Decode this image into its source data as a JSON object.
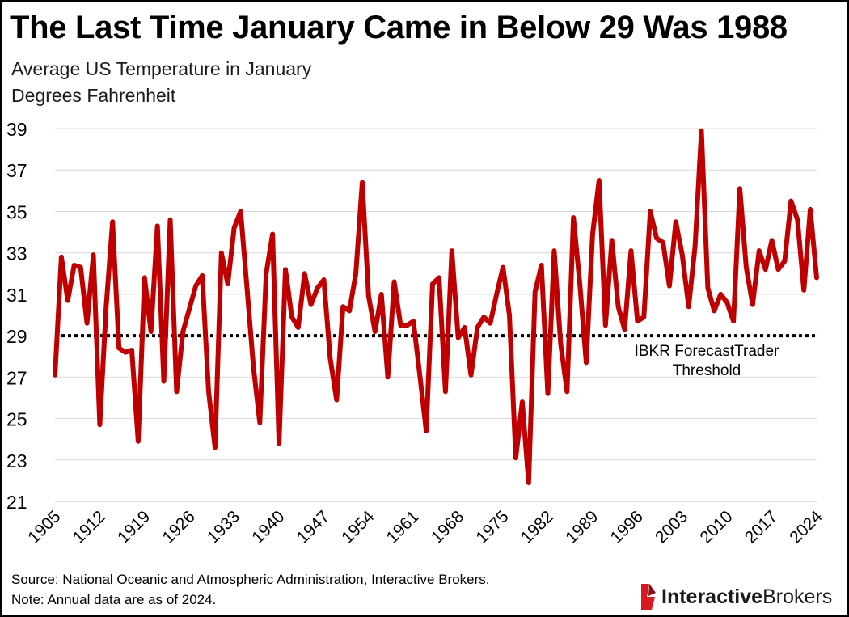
{
  "header": {
    "title": "The Last Time January Came in Below 29 Was 1988",
    "subtitle_line1": "Average US Temperature in January",
    "subtitle_line2": "Degrees Fahrenheit"
  },
  "footer": {
    "source": "Source: National Oceanic and Atmospheric Administration, Interactive Brokers.",
    "note": "Note: Annual data are as of 2024."
  },
  "logo": {
    "brand_bold": "Interactive",
    "brand_regular": "Brokers",
    "icon": "ib-flag-icon",
    "colors": {
      "mark": "#d71920",
      "text": "#1a1a1a"
    }
  },
  "chart_data": {
    "type": "line",
    "title": "The Last Time January Came in Below 29 Was 1988",
    "xlabel": "",
    "ylabel": "",
    "xlim": [
      1905,
      2024
    ],
    "ylim": [
      21,
      39
    ],
    "x_ticks": [
      "1905",
      "1912",
      "1919",
      "1926",
      "1933",
      "1940",
      "1947",
      "1954",
      "1961",
      "1968",
      "1975",
      "1982",
      "1989",
      "1996",
      "2003",
      "2010",
      "2017",
      "2024"
    ],
    "y_ticks": [
      21,
      23,
      25,
      27,
      29,
      31,
      33,
      35,
      37,
      39
    ],
    "grid": "horizontal",
    "legend": "none",
    "series": [
      {
        "color": "#c00000",
        "x_start": 1905,
        "values": [
          27.1,
          32.8,
          30.7,
          32.4,
          32.3,
          29.6,
          32.9,
          24.7,
          30.4,
          34.5,
          28.4,
          28.2,
          28.3,
          23.9,
          31.8,
          29.2,
          34.3,
          26.8,
          34.6,
          26.3,
          29.2,
          30.3,
          31.4,
          31.9,
          26.3,
          23.6,
          33.0,
          31.5,
          34.2,
          35.0,
          31.3,
          27.5,
          24.8,
          32.0,
          33.9,
          23.8,
          32.2,
          29.9,
          29.4,
          32.0,
          30.5,
          31.3,
          31.7,
          27.9,
          25.9,
          30.4,
          30.2,
          32.0,
          36.4,
          30.9,
          29.2,
          31.0,
          27.0,
          31.6,
          29.5,
          29.5,
          29.7,
          27.1,
          24.4,
          31.5,
          31.8,
          26.3,
          33.1,
          28.9,
          29.4,
          27.1,
          29.4,
          29.9,
          29.6,
          31.0,
          32.3,
          30.0,
          23.1,
          25.8,
          21.9,
          31.1,
          32.4,
          26.2,
          33.1,
          28.6,
          26.3,
          34.7,
          31.5,
          27.7,
          33.9,
          36.5,
          29.5,
          33.6,
          30.4,
          29.3,
          33.1,
          29.7,
          29.9,
          35.0,
          33.7,
          33.5,
          31.4,
          34.5,
          32.9,
          30.4,
          33.3,
          38.9,
          31.3,
          30.2,
          31.0,
          30.6,
          29.7,
          36.1,
          32.3,
          30.5,
          33.1,
          32.2,
          33.6,
          32.2,
          32.6,
          35.5,
          34.6,
          31.2,
          35.1,
          31.8
        ]
      }
    ],
    "annotations": [
      {
        "type": "hline",
        "y": 29,
        "style": "dotted",
        "color": "#000000",
        "text_line1": "IBKR ForecastTrader",
        "text_line2": "Threshold"
      }
    ]
  }
}
